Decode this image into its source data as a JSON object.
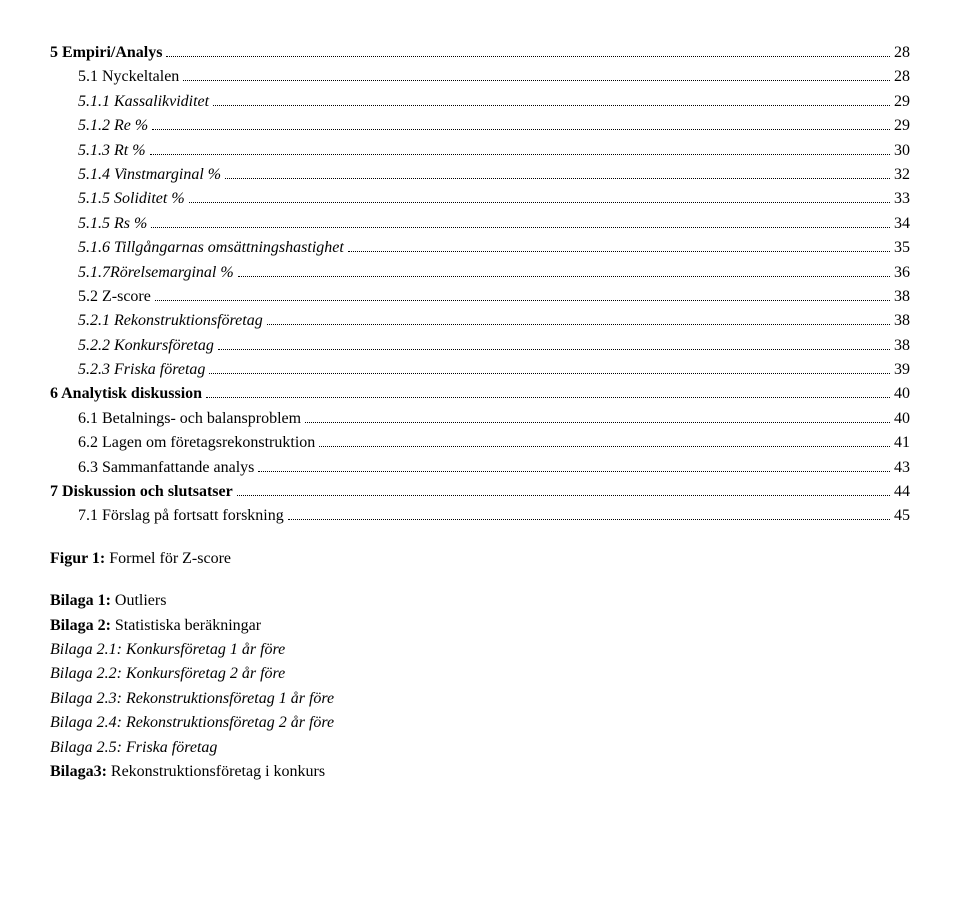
{
  "toc": [
    {
      "label": "5 Empiri/Analys",
      "page": "28",
      "bold": true,
      "italic": false,
      "indent": 0
    },
    {
      "label": "5.1 Nyckeltalen",
      "page": "28",
      "bold": false,
      "italic": false,
      "indent": 1
    },
    {
      "label": "5.1.1 Kassalikviditet",
      "page": "29",
      "bold": false,
      "italic": true,
      "indent": 2
    },
    {
      "label": "5.1.2 Re %",
      "page": "29",
      "bold": false,
      "italic": true,
      "indent": 2
    },
    {
      "label": "5.1.3 Rt %",
      "page": "30",
      "bold": false,
      "italic": true,
      "indent": 2
    },
    {
      "label": "5.1.4 Vinstmarginal %",
      "page": "32",
      "bold": false,
      "italic": true,
      "indent": 2
    },
    {
      "label": "5.1.5 Soliditet %",
      "page": "33",
      "bold": false,
      "italic": true,
      "indent": 2
    },
    {
      "label": "5.1.5 Rs %",
      "page": "34",
      "bold": false,
      "italic": true,
      "indent": 2
    },
    {
      "label": "5.1.6 Tillgångarnas omsättningshastighet",
      "page": "35",
      "bold": false,
      "italic": true,
      "indent": 2
    },
    {
      "label": "5.1.7Rörelsemarginal %",
      "page": "36",
      "bold": false,
      "italic": true,
      "indent": 2
    },
    {
      "label": "5.2 Z-score",
      "page": "38",
      "bold": false,
      "italic": false,
      "indent": 1
    },
    {
      "label": "5.2.1 Rekonstruktionsföretag",
      "page": "38",
      "bold": false,
      "italic": true,
      "indent": 2
    },
    {
      "label": "5.2.2 Konkursföretag",
      "page": "38",
      "bold": false,
      "italic": true,
      "indent": 2
    },
    {
      "label": "5.2.3 Friska företag",
      "page": "39",
      "bold": false,
      "italic": true,
      "indent": 2
    },
    {
      "label": "6 Analytisk diskussion",
      "page": "40",
      "bold": true,
      "italic": false,
      "indent": 0
    },
    {
      "label": "6.1 Betalnings- och balansproblem",
      "page": "40",
      "bold": false,
      "italic": false,
      "indent": 1
    },
    {
      "label": "6.2 Lagen om företagsrekonstruktion",
      "page": "41",
      "bold": false,
      "italic": false,
      "indent": 1
    },
    {
      "label": "6.3 Sammanfattande analys",
      "page": "43",
      "bold": false,
      "italic": false,
      "indent": 1
    },
    {
      "label": "7 Diskussion och slutsatser",
      "page": "44",
      "bold": true,
      "italic": false,
      "indent": 0
    },
    {
      "label": "7.1 Förslag på fortsatt forskning",
      "page": "45",
      "bold": false,
      "italic": false,
      "indent": 1
    }
  ],
  "figure_line": {
    "prefix": "Figur 1: ",
    "text": "Formel för Z-score"
  },
  "appendices": [
    {
      "prefix": "Bilaga 1: ",
      "text": "Outliers",
      "boldPrefix": true,
      "italic": false
    },
    {
      "prefix": "Bilaga 2: ",
      "text": "Statistiska beräkningar",
      "boldPrefix": true,
      "italic": false
    },
    {
      "prefix": "Bilaga 2.1: ",
      "text": "Konkursföretag 1 år före",
      "boldPrefix": false,
      "italic": true
    },
    {
      "prefix": "Bilaga 2.2: ",
      "text": "Konkursföretag 2 år före",
      "boldPrefix": false,
      "italic": true
    },
    {
      "prefix": "Bilaga 2.3: ",
      "text": "Rekonstruktionsföretag 1 år före",
      "boldPrefix": false,
      "italic": true
    },
    {
      "prefix": "Bilaga 2.4: ",
      "text": "Rekonstruktionsföretag 2 år före",
      "boldPrefix": false,
      "italic": true
    },
    {
      "prefix": "Bilaga 2.5: ",
      "text": "Friska företag",
      "boldPrefix": false,
      "italic": true
    },
    {
      "prefix": "Bilaga3: ",
      "text": "Rekonstruktionsföretag i konkurs",
      "boldPrefix": true,
      "italic": false
    }
  ]
}
